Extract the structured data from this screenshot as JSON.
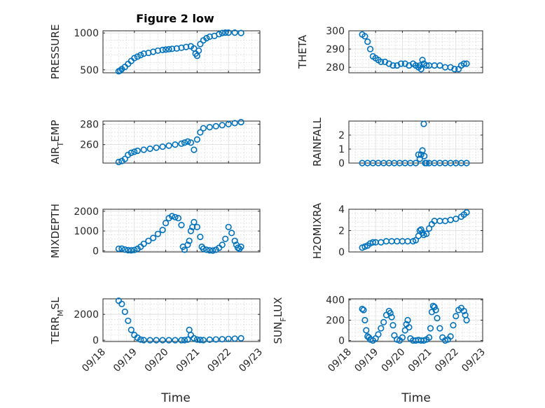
{
  "figure_title": "Figure 2 low",
  "marker_color": "#0072BD",
  "chart_data": [
    {
      "type": "scatter",
      "title": "Figure 2 low",
      "ylabel": "PRESSURE",
      "ylim": [
        460,
        1030
      ],
      "yticks": [
        500,
        1000
      ],
      "ytick_labels": [
        "500",
        "1000"
      ],
      "x": [
        18.5,
        18.55,
        18.6,
        18.7,
        18.8,
        18.9,
        19.0,
        19.1,
        19.2,
        19.3,
        19.45,
        19.6,
        19.75,
        19.9,
        20.0,
        20.1,
        20.2,
        20.35,
        20.5,
        20.65,
        20.8,
        20.9,
        20.95,
        21.0,
        21.05,
        21.1,
        21.2,
        21.3,
        21.4,
        21.55,
        21.7,
        21.8,
        21.9,
        22.0,
        22.2,
        22.4
      ],
      "y": [
        480,
        490,
        510,
        540,
        580,
        620,
        660,
        680,
        700,
        720,
        730,
        745,
        760,
        770,
        775,
        780,
        785,
        790,
        800,
        810,
        820,
        790,
        720,
        690,
        760,
        850,
        900,
        930,
        950,
        960,
        985,
        1000,
        1005,
        1005,
        1005,
        1000
      ]
    },
    {
      "type": "scatter",
      "ylabel": "THETA",
      "ylim": [
        277,
        300
      ],
      "yticks": [
        280,
        290,
        300
      ],
      "ytick_labels": [
        "280",
        "290",
        "300"
      ],
      "x": [
        18.5,
        18.6,
        18.7,
        18.8,
        18.9,
        19.0,
        19.1,
        19.2,
        19.35,
        19.5,
        19.65,
        19.8,
        19.95,
        20.1,
        20.25,
        20.4,
        20.5,
        20.6,
        20.65,
        20.7,
        20.75,
        20.8,
        20.9,
        21.0,
        21.2,
        21.4,
        21.6,
        21.8,
        21.95,
        22.1,
        22.2,
        22.3,
        22.4
      ],
      "y": [
        298,
        297,
        294,
        290,
        286,
        285,
        284,
        283,
        283,
        282,
        281,
        281,
        282,
        282,
        281,
        282,
        281,
        280,
        281,
        279,
        284,
        282,
        281,
        281,
        281,
        281,
        280,
        280,
        279,
        279,
        281,
        282,
        282
      ]
    },
    {
      "type": "scatter",
      "ylabel": "AIR_TEMP",
      "ylim": [
        242,
        283
      ],
      "yticks": [
        260,
        280
      ],
      "ytick_labels": [
        "260",
        "280"
      ],
      "x": [
        18.5,
        18.6,
        18.7,
        18.8,
        18.9,
        19.0,
        19.1,
        19.3,
        19.5,
        19.7,
        19.9,
        20.1,
        20.3,
        20.5,
        20.6,
        20.7,
        20.8,
        20.9,
        21.0,
        21.1,
        21.2,
        21.4,
        21.6,
        21.8,
        22.0,
        22.2,
        22.4
      ],
      "y": [
        243,
        244,
        246,
        250,
        252,
        253,
        254,
        255,
        256,
        257,
        258,
        259,
        260,
        261,
        262,
        263,
        262,
        255,
        265,
        272,
        276,
        277,
        278,
        279,
        280,
        281,
        282
      ]
    },
    {
      "type": "scatter",
      "ylabel": "RAINFALL",
      "ylim": [
        0,
        3
      ],
      "yticks": [
        0,
        1,
        2
      ],
      "ytick_labels": [
        "0",
        "1",
        "2"
      ],
      "x": [
        18.5,
        18.7,
        18.9,
        19.1,
        19.3,
        19.5,
        19.7,
        19.9,
        20.1,
        20.3,
        20.5,
        20.6,
        20.65,
        20.7,
        20.75,
        20.8,
        20.82,
        20.85,
        20.9,
        21.0,
        21.2,
        21.4,
        21.6,
        21.8,
        22.0,
        22.2,
        22.4
      ],
      "y": [
        0,
        0,
        0,
        0,
        0,
        0,
        0,
        0,
        0,
        0,
        0,
        0.6,
        0.3,
        0.6,
        0.9,
        2.8,
        0.5,
        0,
        0,
        0,
        0,
        0,
        0,
        0,
        0,
        0,
        0
      ]
    },
    {
      "type": "scatter",
      "ylabel": "MIXDEPTH",
      "ylim": [
        -60,
        2100
      ],
      "yticks": [
        0,
        1000,
        2000
      ],
      "ytick_labels": [
        "0",
        "1000",
        "2000"
      ],
      "x": [
        18.5,
        18.6,
        18.7,
        18.8,
        18.9,
        19.0,
        19.1,
        19.2,
        19.3,
        19.45,
        19.6,
        19.75,
        19.9,
        20.0,
        20.1,
        20.2,
        20.3,
        20.4,
        20.5,
        20.55,
        20.6,
        20.7,
        20.75,
        20.8,
        20.85,
        20.9,
        21.0,
        21.1,
        21.15,
        21.2,
        21.3,
        21.4,
        21.5,
        21.6,
        21.7,
        21.8,
        21.9,
        22.0,
        22.1,
        22.2,
        22.25,
        22.3,
        22.35,
        22.4
      ],
      "y": [
        100,
        110,
        60,
        30,
        20,
        40,
        100,
        200,
        350,
        500,
        650,
        850,
        1050,
        1400,
        1650,
        1750,
        1700,
        1650,
        1300,
        200,
        50,
        300,
        500,
        1000,
        1200,
        1450,
        1200,
        700,
        200,
        100,
        50,
        20,
        10,
        50,
        150,
        300,
        600,
        1200,
        900,
        500,
        300,
        150,
        100,
        200
      ]
    },
    {
      "type": "scatter",
      "ylabel": "H2OMIXRA",
      "ylim": [
        0,
        4
      ],
      "yticks": [
        0,
        2,
        4
      ],
      "ytick_labels": [
        "0",
        "2",
        "4"
      ],
      "x": [
        18.5,
        18.6,
        18.7,
        18.8,
        18.9,
        19.0,
        19.2,
        19.4,
        19.6,
        19.8,
        20.0,
        20.2,
        20.4,
        20.5,
        20.6,
        20.65,
        20.7,
        20.75,
        20.8,
        20.9,
        21.0,
        21.1,
        21.2,
        21.4,
        21.6,
        21.8,
        22.0,
        22.2,
        22.3,
        22.4
      ],
      "y": [
        0.4,
        0.5,
        0.6,
        0.8,
        0.9,
        0.9,
        0.9,
        1.0,
        1.0,
        1.0,
        1.0,
        1.0,
        1.0,
        1.1,
        1.5,
        2.0,
        2.1,
        1.8,
        1.6,
        1.7,
        2.2,
        2.6,
        2.9,
        2.9,
        2.9,
        3.0,
        3.1,
        3.3,
        3.5,
        3.7
      ]
    },
    {
      "type": "scatter",
      "ylabel": "TERR_MSL",
      "ylim": [
        -100,
        3200
      ],
      "yticks": [
        0,
        2000
      ],
      "ytick_labels": [
        "0",
        "2000"
      ],
      "x": [
        18.5,
        18.6,
        18.7,
        18.8,
        18.9,
        19.0,
        19.1,
        19.2,
        19.3,
        19.5,
        19.7,
        19.9,
        20.1,
        20.3,
        20.5,
        20.6,
        20.7,
        20.75,
        20.8,
        20.9,
        21.0,
        21.1,
        21.2,
        21.4,
        21.6,
        21.8,
        22.0,
        22.2,
        22.4
      ],
      "y": [
        3050,
        2800,
        2200,
        1500,
        800,
        400,
        200,
        50,
        10,
        0,
        0,
        0,
        0,
        0,
        0,
        10,
        50,
        800,
        400,
        150,
        50,
        20,
        10,
        40,
        60,
        80,
        100,
        120,
        150
      ]
    },
    {
      "type": "scatter",
      "ylabel": "SUN_FLUX",
      "ylim": [
        -10,
        410
      ],
      "yticks": [
        0,
        200,
        400
      ],
      "ytick_labels": [
        "0",
        "200",
        "400"
      ],
      "x": [
        18.5,
        18.55,
        18.6,
        18.65,
        18.7,
        18.75,
        18.8,
        18.9,
        19.0,
        19.1,
        19.2,
        19.3,
        19.4,
        19.5,
        19.55,
        19.6,
        19.65,
        19.7,
        19.8,
        19.9,
        20.0,
        20.1,
        20.15,
        20.2,
        20.25,
        20.3,
        20.4,
        20.5,
        20.6,
        20.7,
        20.8,
        20.9,
        21.0,
        21.05,
        21.1,
        21.15,
        21.2,
        21.25,
        21.3,
        21.4,
        21.5,
        21.6,
        21.7,
        21.8,
        21.9,
        22.0,
        22.1,
        22.2,
        22.3,
        22.35,
        22.4
      ],
      "y": [
        310,
        300,
        200,
        100,
        40,
        30,
        10,
        0,
        20,
        60,
        120,
        180,
        250,
        290,
        270,
        230,
        150,
        50,
        10,
        0,
        30,
        100,
        160,
        200,
        130,
        20,
        0,
        0,
        5,
        0,
        0,
        10,
        30,
        120,
        280,
        340,
        330,
        300,
        220,
        120,
        30,
        0,
        10,
        40,
        150,
        240,
        300,
        320,
        290,
        250,
        200
      ]
    },
    {
      "type": "scatter",
      "xlabel": "Time",
      "xlim": [
        18,
        23
      ],
      "xticks": [
        18,
        19,
        20,
        21,
        22,
        23
      ],
      "xtick_labels": [
        "09/18",
        "09/19",
        "09/20",
        "09/21",
        "09/22",
        "09/23"
      ]
    }
  ],
  "axes_x_label": "Time",
  "xtick_labels": [
    "09/18",
    "09/19",
    "09/20",
    "09/21",
    "09/22",
    "09/23"
  ],
  "panels_text": {
    "p1_ylabel": "PRESSURE",
    "p2_ylabel": "THETA",
    "p3_ylabel_main": "AIR",
    "p3_ylabel_sub": "T",
    "p3_ylabel_rest": "EMP",
    "p4_ylabel": "RAINFALL",
    "p5_ylabel": "MIXDEPTH",
    "p6_ylabel": "H2OMIXRA",
    "p7_ylabel_main": "TERR",
    "p7_ylabel_sub": "M",
    "p7_ylabel_rest": "SL",
    "p8_ylabel_main": "SUN",
    "p8_ylabel_sub": "F",
    "p8_ylabel_rest": "LUX"
  }
}
